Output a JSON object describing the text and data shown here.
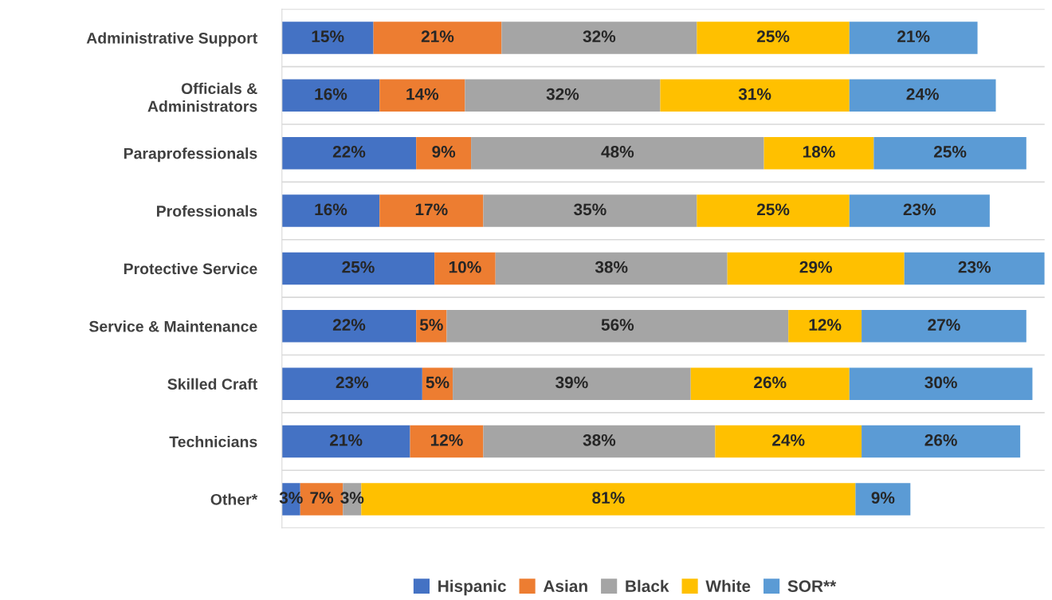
{
  "chart_data": {
    "type": "bar",
    "orientation": "horizontal",
    "stacked": true,
    "grid": "y",
    "legend": "bottom",
    "categories": [
      "Administrative Support",
      "Officials &\nAdministrators",
      "Paraprofessionals",
      "Professionals",
      "Protective Service",
      "Service & Maintenance",
      "Skilled Craft",
      "Technicians",
      "Other*"
    ],
    "series": [
      {
        "name": "Hispanic",
        "color": "#4472c4",
        "values": [
          15,
          16,
          22,
          16,
          25,
          22,
          23,
          21,
          3
        ],
        "value_labels": [
          "15%",
          "16%",
          "22%",
          "16%",
          "25%",
          "22%",
          "23%",
          "21%",
          "3%"
        ]
      },
      {
        "name": "Asian",
        "color": "#ed7d31",
        "values": [
          21,
          14,
          9,
          17,
          10,
          5,
          5,
          12,
          7
        ],
        "value_labels": [
          "21%",
          "14%",
          "9%",
          "17%",
          "10%",
          "5%",
          "5%",
          "12%",
          "7%"
        ]
      },
      {
        "name": "Black",
        "color": "#a5a5a5",
        "values": [
          32,
          32,
          48,
          35,
          38,
          56,
          39,
          38,
          3
        ],
        "value_labels": [
          "32%",
          "32%",
          "48%",
          "35%",
          "38%",
          "56%",
          "39%",
          "38%",
          "3%"
        ]
      },
      {
        "name": "White",
        "color": "#ffc000",
        "values": [
          25,
          31,
          18,
          25,
          29,
          12,
          26,
          24,
          81
        ],
        "value_labels": [
          "25%",
          "31%",
          "18%",
          "25%",
          "29%",
          "12%",
          "26%",
          "24%",
          "81%"
        ]
      },
      {
        "name": "SOR**",
        "color": "#5b9bd5",
        "values": [
          21,
          24,
          25,
          23,
          23,
          27,
          30,
          26,
          9
        ],
        "value_labels": [
          "21%",
          "24%",
          "25%",
          "23%",
          "23%",
          "27%",
          "30%",
          "26%",
          "9%"
        ]
      }
    ]
  }
}
